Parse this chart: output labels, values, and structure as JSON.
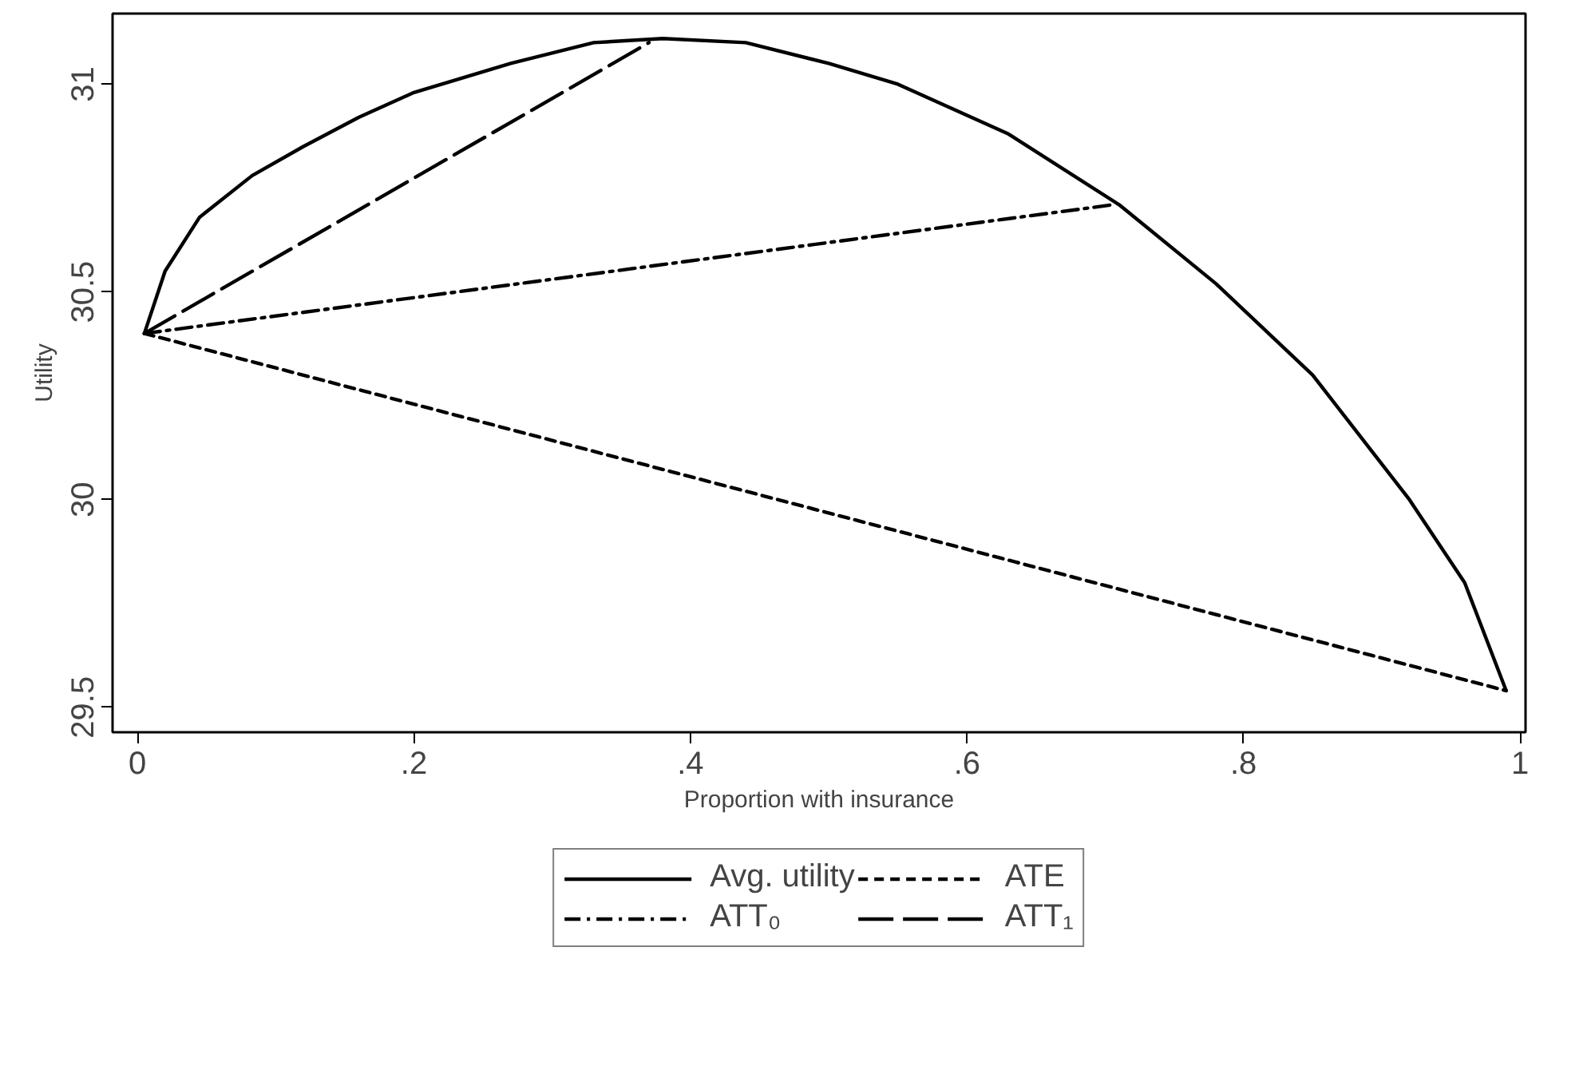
{
  "chart_data": {
    "type": "line",
    "xlabel": "Proportion with insurance",
    "ylabel": "Utility",
    "xlim": [
      -0.018,
      1.004
    ],
    "ylim": [
      29.44,
      31.17
    ],
    "xticks": [
      {
        "value": 0,
        "label": "0"
      },
      {
        "value": 0.2,
        "label": ".2"
      },
      {
        "value": 0.4,
        "label": ".4"
      },
      {
        "value": 0.6,
        "label": ".6"
      },
      {
        "value": 0.8,
        "label": ".8"
      },
      {
        "value": 1,
        "label": "1"
      }
    ],
    "yticks": [
      29.5,
      30,
      30.5,
      31
    ],
    "grid": false,
    "legend": "bottom",
    "series": [
      {
        "name": "Avg. utility",
        "color": "#000000",
        "line_style": "solid",
        "x": [
          0.005,
          0.02,
          0.045,
          0.083,
          0.12,
          0.16,
          0.2,
          0.27,
          0.33,
          0.38,
          0.44,
          0.5,
          0.55,
          0.63,
          0.71,
          0.78,
          0.85,
          0.92,
          0.96,
          0.99
        ],
        "values": [
          30.4,
          30.55,
          30.68,
          30.78,
          30.85,
          30.92,
          30.98,
          31.05,
          31.1,
          31.11,
          31.1,
          31.05,
          31.0,
          30.88,
          30.71,
          30.52,
          30.3,
          30.0,
          29.8,
          29.54
        ]
      },
      {
        "name": "ATE",
        "color": "#000000",
        "line_style": "dashed",
        "x": [
          0.005,
          0.99
        ],
        "values": [
          30.4,
          29.54
        ]
      },
      {
        "name": "ATT₀",
        "color": "#000000",
        "line_style": "dashdot",
        "x": [
          0.005,
          0.706
        ],
        "values": [
          30.4,
          30.71
        ]
      },
      {
        "name": "ATT₁",
        "color": "#000000",
        "line_style": "longdash",
        "x": [
          0.005,
          0.37
        ],
        "values": [
          30.4,
          31.1
        ]
      }
    ]
  }
}
